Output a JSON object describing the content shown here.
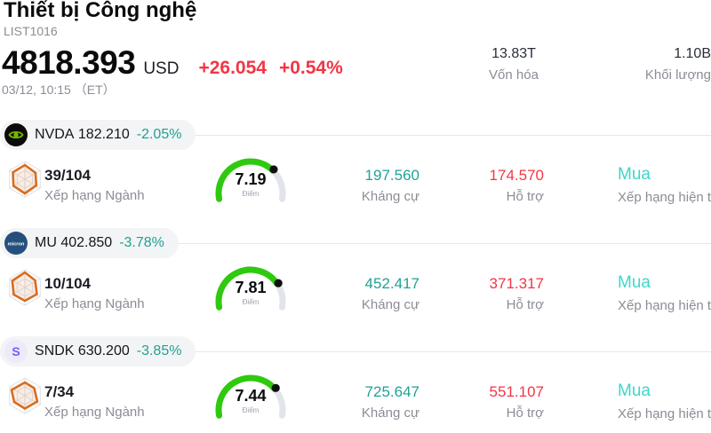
{
  "header": {
    "title": "Thiết bị Công nghệ",
    "list_id": "LIST1016",
    "price": "4818.393",
    "currency": "USD",
    "change": "+26.054",
    "change_pct": "+0.54%",
    "timestamp": "03/12, 10:15 （ET）",
    "stats": [
      {
        "value": "13.83T",
        "label": "Vốn hóa"
      },
      {
        "value": "1.10B",
        "label": "Khối lượng"
      }
    ]
  },
  "labels": {
    "sector_rank": "Xếp hạng Ngành",
    "score": "Điểm",
    "resistance": "Kháng cự",
    "support": "Hỗ trợ",
    "current_rating": "Xếp hạng hiện tại"
  },
  "gauge": {
    "max": 10,
    "green": "#2fc90f",
    "track": "#e2e4ec",
    "dot": "#101010"
  },
  "stocks": [
    {
      "ticker": "NVDA",
      "price": "182.210",
      "change_pct": "-2.05%",
      "logo": "nvidia-logo",
      "rank": "39/104",
      "score": 7.19,
      "resistance": "197.560",
      "support": "174.570",
      "rating": "Mua"
    },
    {
      "ticker": "MU",
      "price": "402.850",
      "change_pct": "-3.78%",
      "logo": "micron-logo",
      "logo_text": "micron",
      "rank": "10/104",
      "score": 7.81,
      "resistance": "452.417",
      "support": "371.317",
      "rating": "Mua"
    },
    {
      "ticker": "SNDK",
      "price": "630.200",
      "change_pct": "-3.85%",
      "logo": "sandisk-logo",
      "logo_letter": "S",
      "rank": "7/34",
      "score": 7.44,
      "resistance": "725.647",
      "support": "551.107",
      "rating": "Mua"
    }
  ],
  "colors": {
    "accent_red": "#f23645",
    "accent_teal": "#1fa294",
    "rating_teal": "#3fd6c7",
    "pill_bg": "#f3f4f6",
    "hexagon_orange": "#d96d1f"
  }
}
